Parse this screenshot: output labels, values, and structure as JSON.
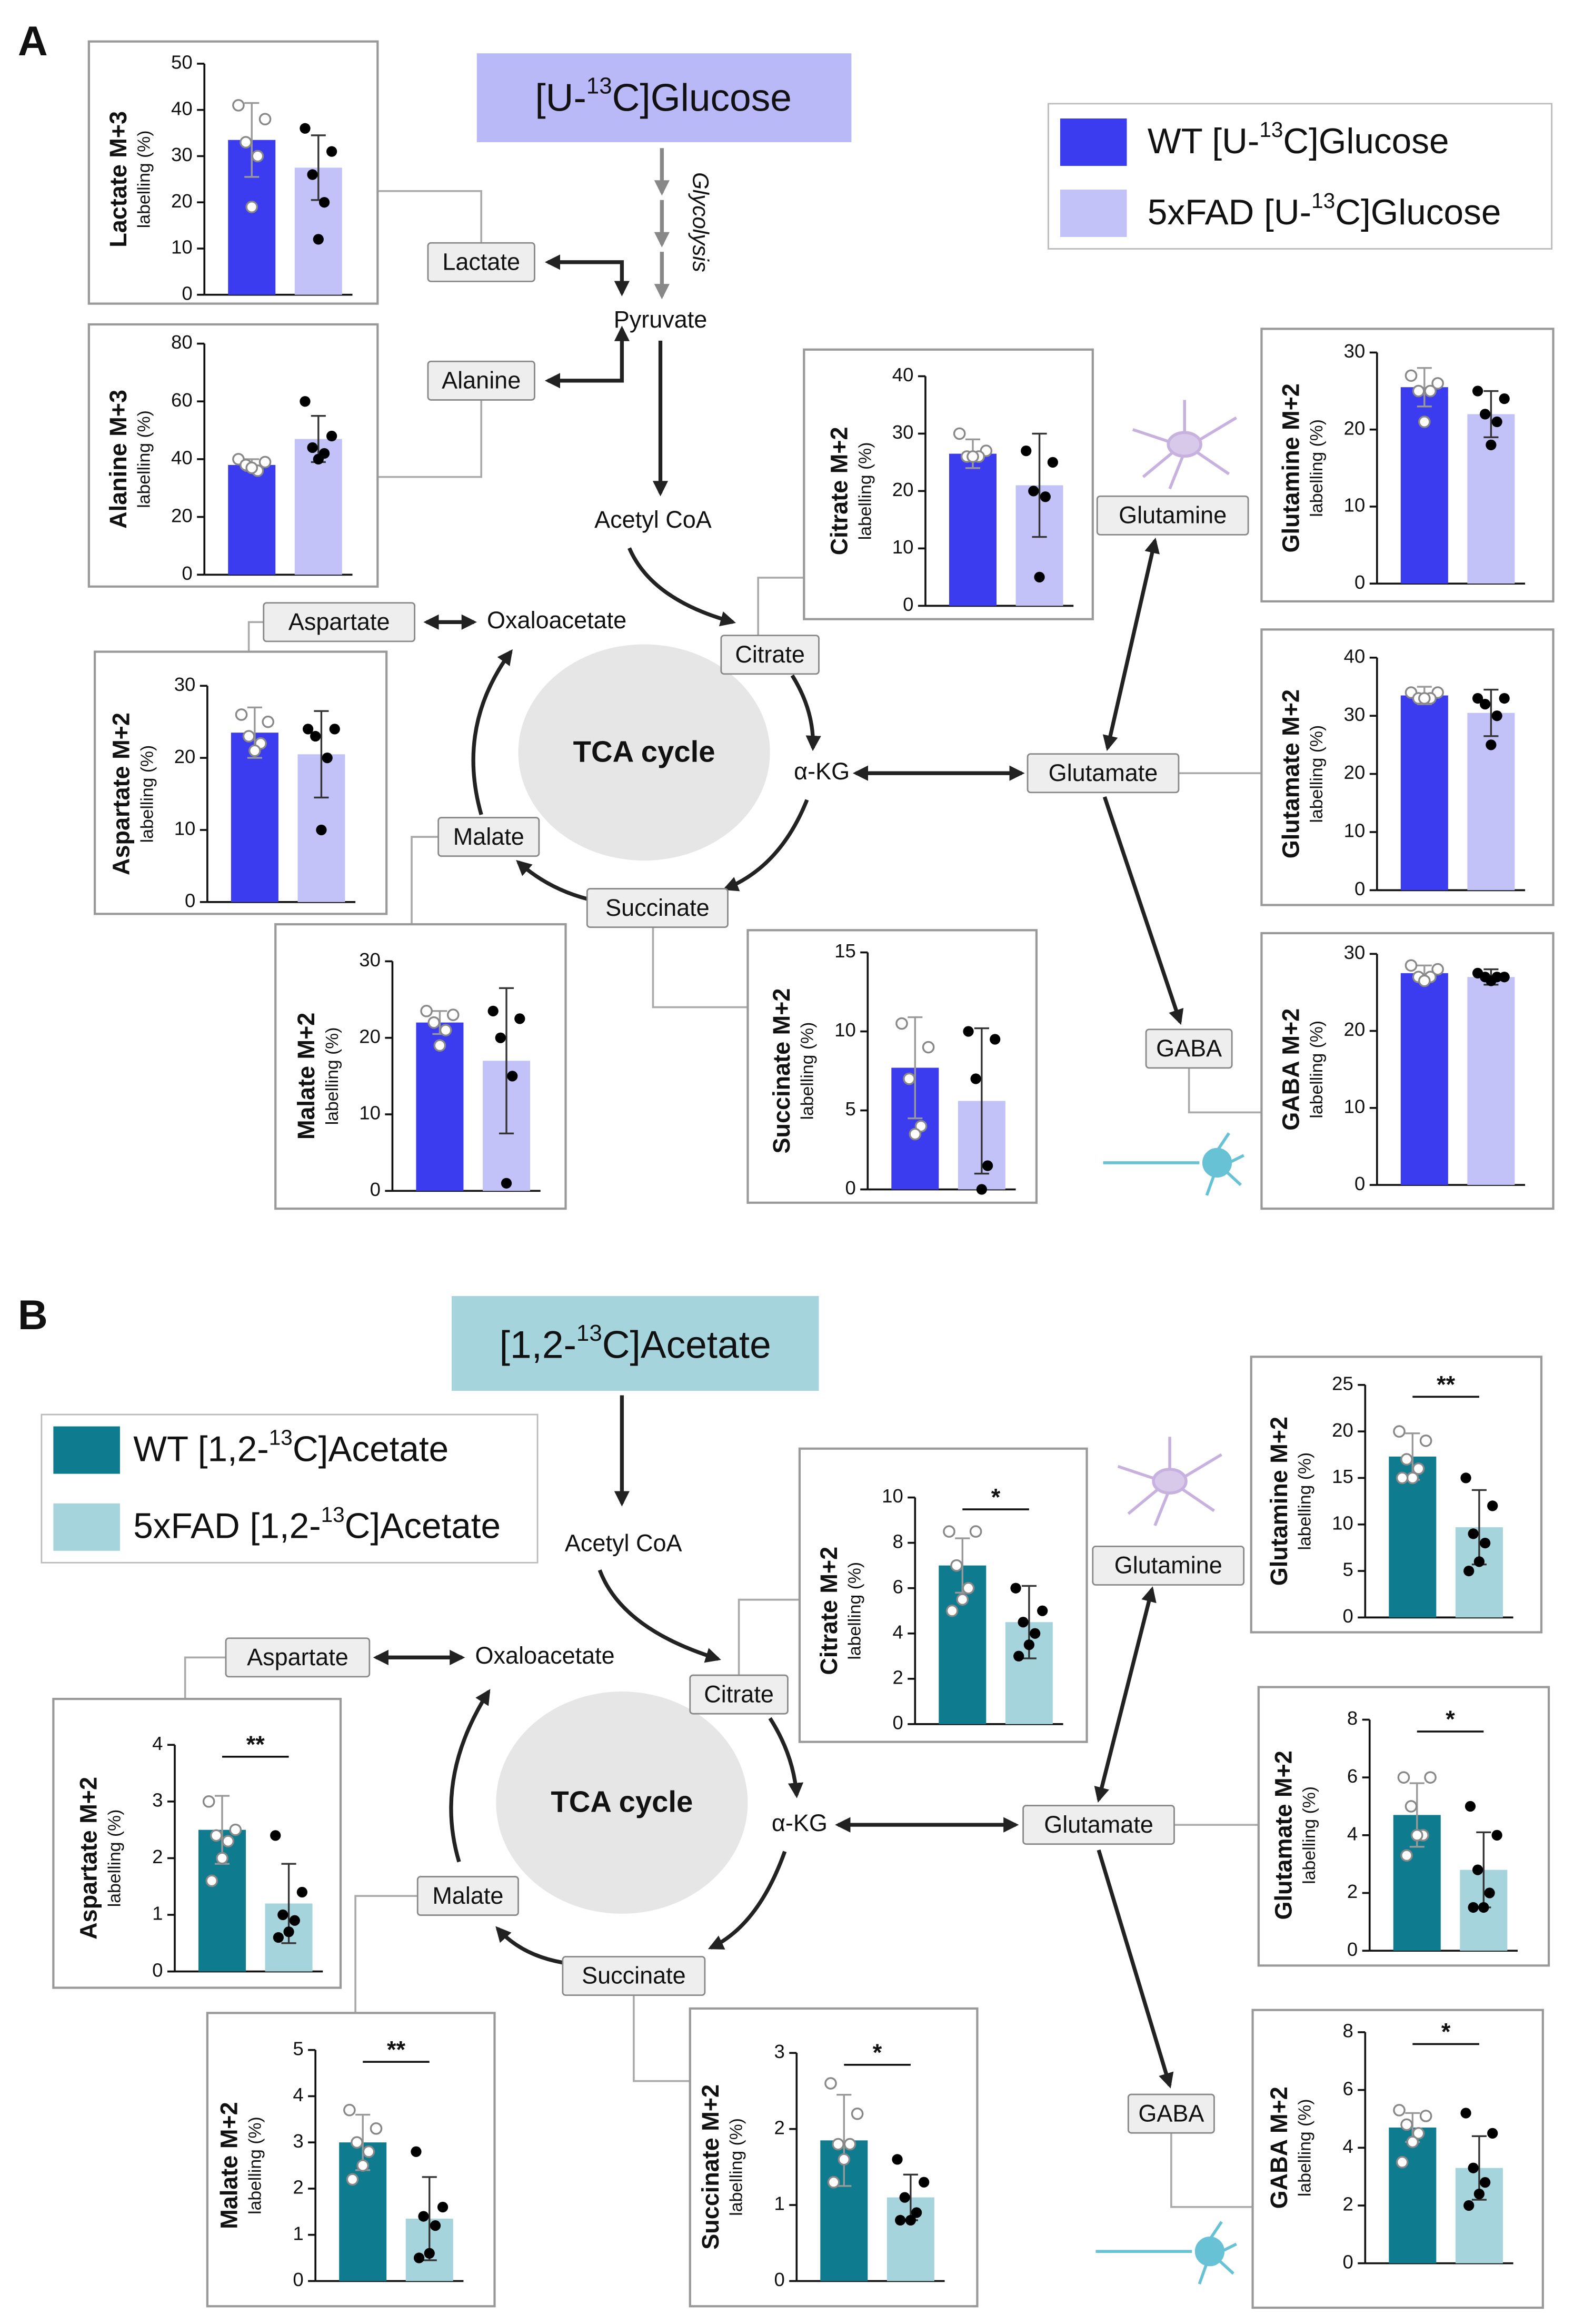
{
  "panel_a": {
    "letter": "A",
    "substrate": [
      "[U-",
      "13",
      "C]Glucose"
    ],
    "legend": [
      {
        "color": "#3b3bf0",
        "label": [
          "WT [U-",
          "13",
          "C]Glucose"
        ]
      },
      {
        "color": "#c2c2f9",
        "label": [
          "5xFAD [U-",
          "13",
          "C]Glucose"
        ]
      }
    ],
    "nodes": {
      "glycolysis": "Glycolysis",
      "pyruvate": "Pyruvate",
      "lactate": "Lactate",
      "alanine": "Alanine",
      "acetyl_coa": "Acetyl CoA",
      "aspartate": "Aspartate",
      "oxaloacetate": "Oxaloacetate",
      "citrate": "Citrate",
      "tca": "TCA cycle",
      "akg": "α-KG",
      "glutamate": "Glutamate",
      "glutamine": "Glutamine",
      "gaba": "GABA",
      "malate": "Malate",
      "succinate": "Succinate"
    }
  },
  "panel_b": {
    "letter": "B",
    "substrate": [
      "[1,2-",
      "13",
      "C]Acetate"
    ],
    "legend": [
      {
        "color": "#0e7c8e",
        "label": [
          "WT [1,2-",
          "13",
          "C]Acetate"
        ]
      },
      {
        "color": "#a6d4dd",
        "label": [
          "5xFAD [1,2-",
          "13",
          "C]Acetate"
        ]
      }
    ],
    "nodes": {
      "acetyl_coa": "Acetyl CoA",
      "aspartate": "Aspartate",
      "oxaloacetate": "Oxaloacetate",
      "citrate": "Citrate",
      "tca": "TCA cycle",
      "akg": "α-KG",
      "glutamate": "Glutamate",
      "glutamine": "Glutamine",
      "gaba": "GABA",
      "malate": "Malate",
      "succinate": "Succinate"
    }
  },
  "chart_data": [
    {
      "type": "bar",
      "title": "Lactate M+3",
      "ylabel": "labelling (%)",
      "ylim": [
        0,
        50
      ],
      "yticks": [
        0,
        10,
        20,
        30,
        40,
        50
      ],
      "colors": [
        "#3b3bf0",
        "#c2c2f9"
      ],
      "values": [
        33.5,
        27.5
      ],
      "errors": [
        8,
        7
      ],
      "points": [
        [
          41,
          38,
          33,
          30,
          19
        ],
        [
          36,
          31,
          26,
          20,
          12
        ]
      ]
    },
    {
      "type": "bar",
      "title": "Alanine M+3",
      "ylabel": "labelling (%)",
      "ylim": [
        0,
        80
      ],
      "yticks": [
        0,
        20,
        40,
        60,
        80
      ],
      "colors": [
        "#3b3bf0",
        "#c2c2f9"
      ],
      "values": [
        38,
        47
      ],
      "errors": [
        2,
        8
      ],
      "points": [
        [
          40,
          39,
          38,
          36,
          37
        ],
        [
          60,
          48,
          44,
          42,
          40
        ]
      ]
    },
    {
      "type": "bar",
      "title": "Citrate M+2",
      "ylabel": "labelling (%)",
      "ylim": [
        0,
        40
      ],
      "yticks": [
        0,
        10,
        20,
        30,
        40
      ],
      "colors": [
        "#3b3bf0",
        "#c2c2f9"
      ],
      "values": [
        26.5,
        21
      ],
      "errors": [
        2.5,
        9
      ],
      "points": [
        [
          30,
          27,
          26,
          26,
          26
        ],
        [
          27,
          25,
          20,
          19,
          5
        ]
      ]
    },
    {
      "type": "bar",
      "title": "Glutamine M+2",
      "ylabel": "labelling (%)",
      "ylim": [
        0,
        30
      ],
      "yticks": [
        0,
        10,
        20,
        30
      ],
      "colors": [
        "#3b3bf0",
        "#c2c2f9"
      ],
      "values": [
        25.5,
        22
      ],
      "errors": [
        2.5,
        3
      ],
      "points": [
        [
          27,
          26,
          25,
          25,
          21
        ],
        [
          25,
          24,
          22,
          21,
          18
        ]
      ]
    },
    {
      "type": "bar",
      "title": "Aspartate M+2",
      "ylabel": "labelling (%)",
      "ylim": [
        0,
        30
      ],
      "yticks": [
        0,
        10,
        20,
        30
      ],
      "colors": [
        "#3b3bf0",
        "#c2c2f9"
      ],
      "values": [
        23.5,
        20.5
      ],
      "errors": [
        3.5,
        6
      ],
      "points": [
        [
          26,
          25,
          23,
          22,
          21
        ],
        [
          24,
          24,
          23,
          20,
          10
        ]
      ]
    },
    {
      "type": "bar",
      "title": "Glutamate M+2",
      "ylabel": "labelling (%)",
      "ylim": [
        0,
        40
      ],
      "yticks": [
        0,
        10,
        20,
        30,
        40
      ],
      "colors": [
        "#3b3bf0",
        "#c2c2f9"
      ],
      "values": [
        33.5,
        30.5
      ],
      "errors": [
        1.5,
        4
      ],
      "points": [
        [
          34,
          34,
          33,
          33,
          33
        ],
        [
          33,
          33,
          32,
          30,
          25
        ]
      ]
    },
    {
      "type": "bar",
      "title": "Malate M+2",
      "ylabel": "labelling (%)",
      "ylim": [
        0,
        30
      ],
      "yticks": [
        0,
        10,
        20,
        30
      ],
      "colors": [
        "#3b3bf0",
        "#c2c2f9"
      ],
      "values": [
        22,
        17
      ],
      "errors": [
        1.5,
        9.5
      ],
      "points": [
        [
          23.5,
          23,
          22,
          21,
          19
        ],
        [
          23.5,
          22.5,
          20,
          15,
          1
        ]
      ]
    },
    {
      "type": "bar",
      "title": "Succinate M+2",
      "ylabel": "labelling (%)",
      "ylim": [
        0,
        15
      ],
      "yticks": [
        0,
        5,
        10,
        15
      ],
      "colors": [
        "#3b3bf0",
        "#c2c2f9"
      ],
      "values": [
        7.7,
        5.6
      ],
      "errors": [
        3.2,
        4.6
      ],
      "points": [
        [
          10.5,
          9,
          7,
          4,
          3.5
        ],
        [
          10,
          9.5,
          7,
          1.5,
          0
        ]
      ]
    },
    {
      "type": "bar",
      "title": "GABA M+2",
      "ylabel": "labelling (%)",
      "ylim": [
        0,
        30
      ],
      "yticks": [
        0,
        10,
        20,
        30
      ],
      "colors": [
        "#3b3bf0",
        "#c2c2f9"
      ],
      "values": [
        27.5,
        27
      ],
      "errors": [
        1,
        1
      ],
      "points": [
        [
          28.5,
          28,
          27,
          27,
          26.5
        ],
        [
          27.5,
          27,
          27,
          27,
          26.5
        ]
      ]
    },
    {
      "type": "bar",
      "title": "Glutamine M+2",
      "ylabel": "labelling (%)",
      "ylim": [
        0,
        25
      ],
      "yticks": [
        0,
        5,
        10,
        15,
        20,
        25
      ],
      "colors": [
        "#0e7c8e",
        "#a6d4dd"
      ],
      "values": [
        17.3,
        9.7
      ],
      "errors": [
        2.5,
        4
      ],
      "points": [
        [
          20,
          19,
          17,
          16,
          15,
          15
        ],
        [
          15,
          12,
          9,
          8,
          6,
          5
        ]
      ],
      "significance": "**"
    },
    {
      "type": "bar",
      "title": "Citrate M+2",
      "ylabel": "labelling (%)",
      "ylim": [
        0,
        10
      ],
      "yticks": [
        0,
        2,
        4,
        6,
        8,
        10
      ],
      "colors": [
        "#0e7c8e",
        "#a6d4dd"
      ],
      "values": [
        7,
        4.5
      ],
      "errors": [
        1.2,
        1.6
      ],
      "points": [
        [
          8.5,
          8.5,
          7,
          6,
          5.5,
          5
        ],
        [
          6,
          5,
          4.5,
          4,
          3.5,
          3
        ]
      ],
      "significance": "*"
    },
    {
      "type": "bar",
      "title": "Glutamate M+2",
      "ylabel": "labelling (%)",
      "ylim": [
        0,
        8
      ],
      "yticks": [
        0,
        2,
        4,
        6,
        8
      ],
      "colors": [
        "#0e7c8e",
        "#a6d4dd"
      ],
      "values": [
        4.7,
        2.8
      ],
      "errors": [
        1.1,
        1.3
      ],
      "points": [
        [
          6,
          6,
          5,
          4,
          4,
          3.3
        ],
        [
          5,
          4,
          2.8,
          2,
          1.5,
          1.5
        ]
      ],
      "significance": "*"
    },
    {
      "type": "bar",
      "title": "Aspartate M+2",
      "ylabel": "labelling (%)",
      "ylim": [
        0,
        4
      ],
      "yticks": [
        0,
        1,
        2,
        3,
        4
      ],
      "colors": [
        "#0e7c8e",
        "#a6d4dd"
      ],
      "values": [
        2.5,
        1.2
      ],
      "errors": [
        0.6,
        0.7
      ],
      "points": [
        [
          3,
          2.5,
          2.4,
          2.3,
          2,
          1.6
        ],
        [
          2.4,
          1.4,
          1,
          0.9,
          0.7,
          0.6
        ]
      ],
      "significance": "**"
    },
    {
      "type": "bar",
      "title": "Malate M+2",
      "ylabel": "labelling (%)",
      "ylim": [
        0,
        5
      ],
      "yticks": [
        0,
        1,
        2,
        3,
        4,
        5
      ],
      "colors": [
        "#0e7c8e",
        "#a6d4dd"
      ],
      "values": [
        3,
        1.35
      ],
      "errors": [
        0.6,
        0.9
      ],
      "points": [
        [
          3.7,
          3.3,
          3,
          2.8,
          2.5,
          2.2
        ],
        [
          2.8,
          1.6,
          1.4,
          1.2,
          0.6,
          0.5
        ]
      ],
      "significance": "**"
    },
    {
      "type": "bar",
      "title": "Succinate M+2",
      "ylabel": "labelling (%)",
      "ylim": [
        0,
        3
      ],
      "yticks": [
        0,
        1,
        2,
        3
      ],
      "colors": [
        "#0e7c8e",
        "#a6d4dd"
      ],
      "values": [
        1.85,
        1.1
      ],
      "errors": [
        0.6,
        0.3
      ],
      "points": [
        [
          2.6,
          2.2,
          1.8,
          1.8,
          1.6,
          1.3
        ],
        [
          1.6,
          1.3,
          1.1,
          0.9,
          0.8,
          0.8
        ]
      ],
      "significance": "*"
    },
    {
      "type": "bar",
      "title": "GABA M+2",
      "ylabel": "labelling (%)",
      "ylim": [
        0,
        8
      ],
      "yticks": [
        0,
        2,
        4,
        6,
        8
      ],
      "colors": [
        "#0e7c8e",
        "#a6d4dd"
      ],
      "values": [
        4.7,
        3.3
      ],
      "errors": [
        0.5,
        1.1
      ],
      "points": [
        [
          5.3,
          5.1,
          4.8,
          4.5,
          4.2,
          3.5
        ],
        [
          5.2,
          4.5,
          3.3,
          2.8,
          2.4,
          2
        ]
      ],
      "significance": "*"
    }
  ]
}
